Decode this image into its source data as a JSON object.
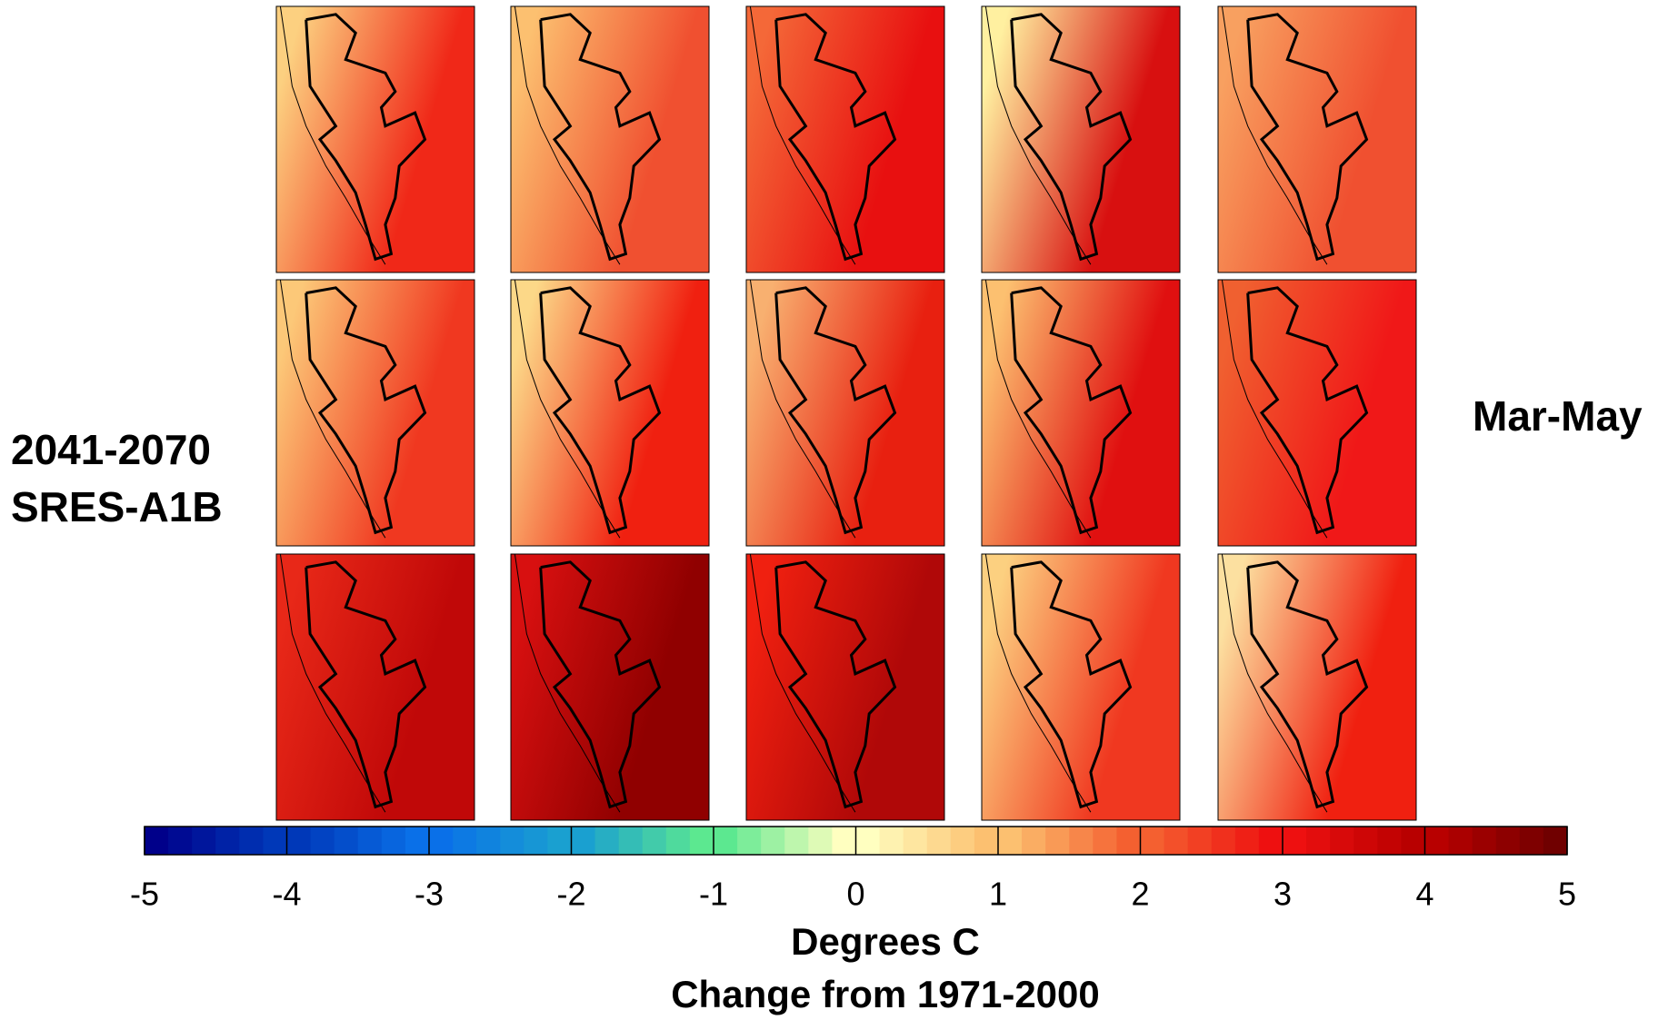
{
  "title_lines": [
    "2041-2070",
    "SRES-A1B"
  ],
  "season": "Mar-May",
  "colorbar": {
    "lim": [
      -5,
      5
    ],
    "ticks": [
      -5,
      -4,
      -3,
      -2,
      -1,
      0,
      1,
      2,
      3,
      4,
      5
    ],
    "colors": [
      "#00008a",
      "#0038b8",
      "#0a70e8",
      "#1aa0d0",
      "#5ce890",
      "#ffffc0",
      "#fcc070",
      "#f46030",
      "#ee1010",
      "#b80000",
      "#700000"
    ],
    "label_lines": [
      "Degrees C",
      "Change from 1971-2000"
    ]
  }
}
